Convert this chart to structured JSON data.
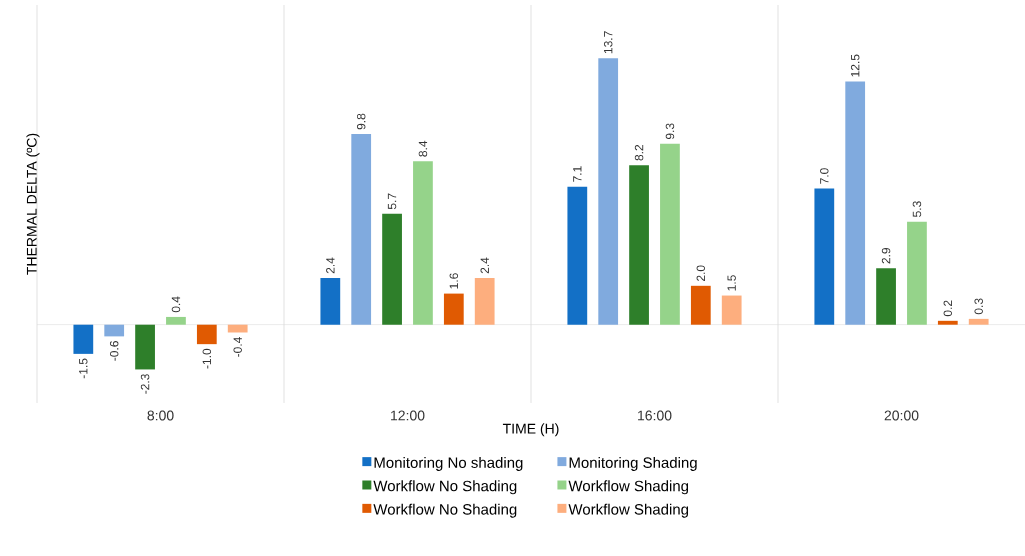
{
  "chart_data": {
    "type": "bar",
    "xlabel": "TIME (H)",
    "ylabel": "THERMAL DELTA (ºC)",
    "categories": [
      "8:00",
      "12:00",
      "16:00",
      "20:00"
    ],
    "series": [
      {
        "name": "Monitoring No shading",
        "color": "#1370c6",
        "values": [
          -1.5,
          2.4,
          7.1,
          7.0
        ],
        "value_labels": [
          "-1.5",
          "2.4",
          "7.1",
          "7.0"
        ]
      },
      {
        "name": "Monitoring Shading",
        "color": "#80aade",
        "values": [
          -0.6,
          9.8,
          13.7,
          12.5
        ],
        "value_labels": [
          "-0.6",
          "9.8",
          "13.7",
          "12.5"
        ]
      },
      {
        "name": "Workflow No Shading",
        "color": "#2e7f2a",
        "values": [
          -2.3,
          5.7,
          8.2,
          2.9
        ],
        "value_labels": [
          "-2.3",
          "5.7",
          "8.2",
          "2.9"
        ]
      },
      {
        "name": "Workflow Shading",
        "color": "#95d38a",
        "values": [
          0.4,
          8.4,
          9.3,
          5.3
        ],
        "value_labels": [
          "0.4",
          "8.4",
          "9.3",
          "5.3"
        ]
      },
      {
        "name": "Workflow No Shading",
        "color": "#e05a02",
        "values": [
          -1.0,
          1.6,
          2.0,
          0.2
        ],
        "value_labels": [
          "-1.0",
          "1.6",
          "2.0",
          "0.2"
        ]
      },
      {
        "name": "Workflow Shading",
        "color": "#fdae7e",
        "values": [
          -0.4,
          2.4,
          1.5,
          0.3
        ],
        "value_labels": [
          "-0.4",
          "2.4",
          "1.5",
          "0.3"
        ]
      }
    ],
    "relative": false,
    "grid": "x",
    "legend": "bottom"
  }
}
